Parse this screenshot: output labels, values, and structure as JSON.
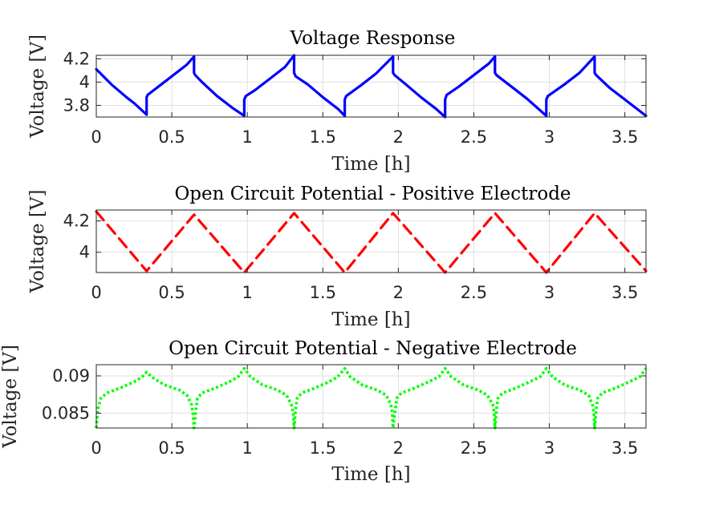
{
  "chart_data": [
    {
      "type": "line",
      "title": "Voltage Response",
      "xlabel": "Time [h]",
      "ylabel": "Voltage [V]",
      "xlim": [
        0,
        3.64
      ],
      "ylim": [
        3.7,
        4.23
      ],
      "xticks": [
        0,
        0.5,
        1,
        1.5,
        2,
        2.5,
        3,
        3.5
      ],
      "xtick_labels": [
        "0",
        "0.5",
        "1",
        "1.5",
        "2",
        "2.5",
        "3",
        "3.5"
      ],
      "yticks": [
        3.8,
        4.0,
        4.2
      ],
      "ytick_labels": [
        "3.8",
        "4",
        "4.2"
      ],
      "grid": true,
      "series": [
        {
          "color": "#0000ff",
          "style": "solid",
          "x": [
            0,
            0.1,
            0.2,
            0.25,
            0.333,
            0.333,
            0.34,
            0.4,
            0.5,
            0.6,
            0.647,
            0.647,
            0.655,
            0.7,
            0.8,
            0.9,
            0.98,
            0.98,
            0.99,
            1.05,
            1.15,
            1.25,
            1.31,
            1.31,
            1.32,
            1.4,
            1.5,
            1.6,
            1.645,
            1.645,
            1.655,
            1.75,
            1.85,
            1.965,
            1.965,
            1.975,
            2.05,
            2.15,
            2.25,
            2.31,
            2.31,
            2.32,
            2.4,
            2.5,
            2.6,
            2.64,
            2.64,
            2.65,
            2.75,
            2.85,
            2.98,
            2.98,
            2.99,
            3.1,
            3.2,
            3.3,
            3.3,
            3.31,
            3.4,
            3.5,
            3.64
          ],
          "y": [
            4.11,
            3.98,
            3.87,
            3.82,
            3.72,
            3.87,
            3.89,
            3.95,
            4.05,
            4.15,
            4.22,
            4.08,
            4.06,
            4.0,
            3.88,
            3.78,
            3.71,
            3.85,
            3.88,
            3.93,
            4.03,
            4.13,
            4.23,
            4.08,
            4.05,
            3.98,
            3.87,
            3.77,
            3.71,
            3.85,
            3.88,
            3.97,
            4.07,
            4.22,
            4.08,
            4.06,
            3.98,
            3.87,
            3.77,
            3.7,
            3.85,
            3.89,
            3.96,
            4.06,
            4.16,
            4.22,
            4.08,
            4.06,
            3.96,
            3.86,
            3.71,
            3.85,
            3.88,
            3.98,
            4.08,
            4.22,
            4.08,
            4.06,
            3.95,
            3.85,
            3.71
          ]
        }
      ]
    },
    {
      "type": "line",
      "title": "Open Circuit Potential - Positive Electrode",
      "xlabel": "Time [h]",
      "ylabel": "Voltage [V]",
      "xlim": [
        0,
        3.64
      ],
      "ylim": [
        3.87,
        4.27
      ],
      "xticks": [
        0,
        0.5,
        1,
        1.5,
        2,
        2.5,
        3,
        3.5
      ],
      "xtick_labels": [
        "0",
        "0.5",
        "1",
        "1.5",
        "2",
        "2.5",
        "3",
        "3.5"
      ],
      "yticks": [
        4.0,
        4.2
      ],
      "ytick_labels": [
        "4",
        "4.2"
      ],
      "grid": true,
      "series": [
        {
          "color": "#ff0000",
          "style": "dashed",
          "x": [
            0,
            0.333,
            0.647,
            0.98,
            1.31,
            1.645,
            1.965,
            2.31,
            2.64,
            2.98,
            3.3,
            3.64
          ],
          "y": [
            4.26,
            3.88,
            4.24,
            3.87,
            4.25,
            3.87,
            4.25,
            3.87,
            4.25,
            3.87,
            4.25,
            3.88
          ]
        }
      ]
    },
    {
      "type": "line",
      "title": "Open Circuit Potential - Negative Electrode",
      "xlabel": "Time [h]",
      "ylabel": "Voltage [V]",
      "xlim": [
        0,
        3.64
      ],
      "ylim": [
        0.083,
        0.0915
      ],
      "xticks": [
        0,
        0.5,
        1,
        1.5,
        2,
        2.5,
        3,
        3.5
      ],
      "xtick_labels": [
        "0",
        "0.5",
        "1",
        "1.5",
        "2",
        "2.5",
        "3",
        "3.5"
      ],
      "yticks": [
        0.085,
        0.09
      ],
      "ytick_labels": [
        "0.085",
        "0.09"
      ],
      "grid": true,
      "series": [
        {
          "color": "#00ff00",
          "style": "dotted",
          "x": [
            0,
            0.01,
            0.03,
            0.07,
            0.15,
            0.25,
            0.3,
            0.333,
            0.37,
            0.45,
            0.55,
            0.6,
            0.63,
            0.64,
            0.647,
            0.66,
            0.67,
            0.7,
            0.78,
            0.88,
            0.94,
            0.98,
            1.02,
            1.1,
            1.2,
            1.26,
            1.29,
            1.305,
            1.31,
            1.32,
            1.33,
            1.36,
            1.44,
            1.54,
            1.6,
            1.645,
            1.68,
            1.76,
            1.86,
            1.92,
            1.95,
            1.96,
            1.965,
            1.98,
            1.99,
            2.02,
            2.1,
            2.2,
            2.27,
            2.31,
            2.35,
            2.43,
            2.53,
            2.59,
            2.625,
            2.635,
            2.64,
            2.65,
            2.66,
            2.69,
            2.77,
            2.87,
            2.94,
            2.98,
            3.02,
            3.1,
            3.2,
            3.26,
            3.285,
            3.295,
            3.3,
            3.31,
            3.32,
            3.35,
            3.43,
            3.53,
            3.6,
            3.64
          ],
          "y": [
            0.083,
            0.0855,
            0.087,
            0.0877,
            0.0883,
            0.0892,
            0.0898,
            0.0905,
            0.0898,
            0.0888,
            0.0881,
            0.0874,
            0.0862,
            0.085,
            0.083,
            0.0855,
            0.087,
            0.0877,
            0.0883,
            0.0892,
            0.0899,
            0.091,
            0.0899,
            0.0888,
            0.0881,
            0.0874,
            0.0862,
            0.085,
            0.083,
            0.0855,
            0.087,
            0.0877,
            0.0883,
            0.0892,
            0.0899,
            0.091,
            0.0899,
            0.0888,
            0.0881,
            0.0874,
            0.0862,
            0.085,
            0.083,
            0.0855,
            0.087,
            0.0877,
            0.0883,
            0.0892,
            0.0899,
            0.091,
            0.0899,
            0.0888,
            0.0881,
            0.0874,
            0.0862,
            0.085,
            0.083,
            0.0855,
            0.087,
            0.0877,
            0.0883,
            0.0892,
            0.0899,
            0.091,
            0.0899,
            0.0888,
            0.0881,
            0.0874,
            0.0862,
            0.085,
            0.083,
            0.0855,
            0.087,
            0.0877,
            0.0883,
            0.0892,
            0.0899,
            0.091
          ]
        }
      ]
    }
  ]
}
